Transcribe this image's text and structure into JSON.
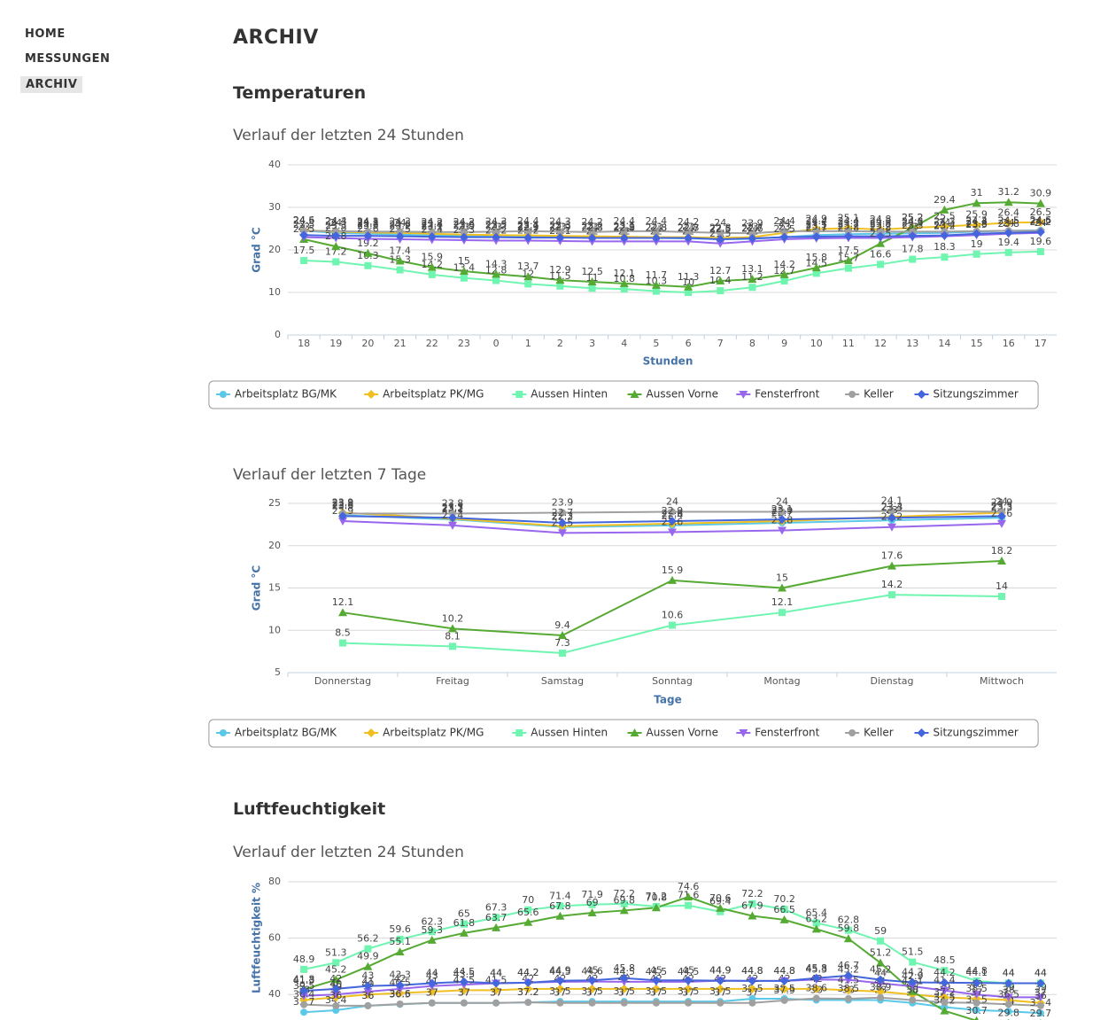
{
  "nav": [
    "HOME",
    "MESSUNGEN",
    "ARCHIV"
  ],
  "title": "ARCHIV",
  "sections": [
    "Temperaturen",
    "Luftfeuchtigkeit"
  ],
  "subtitles": [
    "Verlauf der letzten 24 Stunden",
    "Verlauf der letzten 7 Tage",
    "Verlauf der letzten 24 Stunden"
  ],
  "chart_data": [
    {
      "type": "line",
      "y_label": "Grad °C",
      "x_label": "Stunden",
      "categories": [
        "18",
        "19",
        "20",
        "21",
        "22",
        "23",
        "0",
        "1",
        "2",
        "3",
        "4",
        "5",
        "6",
        "7",
        "8",
        "9",
        "10",
        "11",
        "12",
        "13",
        "14",
        "15",
        "16",
        "17"
      ],
      "ylim": [
        0,
        40
      ],
      "yticks": [
        0,
        10,
        20,
        30,
        40
      ],
      "grid": true,
      "legend": "bottom",
      "series": [
        {
          "name": "Arbeitsplatz BG/MK",
          "color": "#5bc8e8",
          "marker": "circle",
          "values": [
            24.5,
            24,
            23.8,
            23.6,
            23.4,
            23.3,
            23.2,
            23.1,
            23,
            23,
            22.9,
            22.8,
            22.7,
            22.5,
            22.6,
            23,
            23.5,
            23.7,
            23.8,
            23.9,
            24,
            24.3,
            24.5,
            24.6
          ]
        },
        {
          "name": "Arbeitsplatz PK/MG",
          "color": "#f0c020",
          "marker": "diamond",
          "values": [
            24.6,
            24.3,
            24.1,
            24,
            23.8,
            23.6,
            23.5,
            23.4,
            23.3,
            23.2,
            23.1,
            23,
            23,
            22.8,
            23,
            24,
            24.9,
            25.1,
            24.8,
            25.2,
            25.5,
            25.9,
            26.4,
            26.5
          ]
        },
        {
          "name": "Aussen Hinten",
          "color": "#6ff5b0",
          "marker": "square",
          "values": [
            17.5,
            17.2,
            16.3,
            15.3,
            14.2,
            13.4,
            12.8,
            12,
            11.5,
            11,
            10.8,
            10.3,
            10,
            10.4,
            11.2,
            12.7,
            14.5,
            15.7,
            16.6,
            17.8,
            18.3,
            19,
            19.4,
            19.6
          ]
        },
        {
          "name": "Aussen Vorne",
          "color": "#55aa33",
          "marker": "triangle",
          "values": [
            22.5,
            20.8,
            19.2,
            17.4,
            15.9,
            15,
            14.3,
            13.7,
            12.9,
            12.5,
            12.1,
            11.7,
            11.3,
            12.7,
            13.1,
            14.2,
            15.8,
            17.5,
            21.5,
            25.2,
            29.4,
            31,
            31.2,
            30.9
          ]
        },
        {
          "name": "Fensterfront",
          "color": "#9966ee",
          "marker": "triangle-down",
          "values": [
            23,
            22.8,
            22.6,
            22.5,
            22.4,
            22.3,
            22.2,
            22.2,
            22.1,
            22,
            22,
            22,
            22,
            21.5,
            22,
            22.5,
            22.7,
            22.8,
            22.8,
            23,
            23.2,
            23.5,
            23.8,
            24
          ]
        },
        {
          "name": "Keller",
          "color": "#a0a0a0",
          "marker": "circle",
          "values": [
            24.5,
            24.4,
            24.3,
            24.3,
            24.2,
            24.2,
            24.3,
            24.4,
            24.3,
            24.2,
            24.4,
            24.4,
            24.2,
            24,
            23.9,
            24.4,
            24.4,
            24.4,
            24.3,
            24.3,
            24.3,
            24.4,
            24.5,
            24.5
          ]
        },
        {
          "name": "Sitzungszimmer",
          "color": "#4466dd",
          "marker": "diamond",
          "values": [
            23.5,
            23.3,
            23.3,
            23.2,
            23.1,
            23,
            23,
            22.9,
            22.9,
            22.8,
            22.8,
            22.8,
            22.8,
            22.5,
            22.7,
            23,
            23.1,
            23.2,
            23.2,
            23.3,
            23.4,
            23.8,
            24,
            24.2
          ]
        }
      ]
    },
    {
      "type": "line",
      "y_label": "Grad °C",
      "x_label": "Tage",
      "categories": [
        "Donnerstag",
        "Freitag",
        "Samstag",
        "Sonntag",
        "Montag",
        "Dienstag",
        "Mittwoch"
      ],
      "ylim": [
        5,
        25
      ],
      "yticks": [
        5,
        10,
        15,
        20,
        25
      ],
      "grid": true,
      "legend": "bottom",
      "series": [
        {
          "name": "Arbeitsplatz BG/MK",
          "color": "#5bc8e8",
          "marker": "circle",
          "values": [
            23.6,
            23.1,
            22.2,
            22.4,
            22.7,
            23,
            23.3
          ]
        },
        {
          "name": "Arbeitsplatz PK/MG",
          "color": "#f0c020",
          "marker": "diamond",
          "values": [
            23.9,
            23.2,
            22.3,
            22.6,
            22.9,
            23.4,
            23.9
          ]
        },
        {
          "name": "Aussen Hinten",
          "color": "#6ff5b0",
          "marker": "square",
          "values": [
            8.5,
            8.1,
            7.3,
            10.6,
            12.1,
            14.2,
            14
          ]
        },
        {
          "name": "Aussen Vorne",
          "color": "#55aa33",
          "marker": "triangle",
          "values": [
            12.1,
            10.2,
            9.4,
            15.9,
            15,
            17.6,
            18.2
          ]
        },
        {
          "name": "Fensterfront",
          "color": "#9966ee",
          "marker": "triangle-down",
          "values": [
            22.9,
            22.4,
            21.5,
            21.6,
            21.8,
            22.2,
            22.6
          ]
        },
        {
          "name": "Keller",
          "color": "#a0a0a0",
          "marker": "circle",
          "values": [
            23.8,
            23.8,
            23.9,
            24,
            24,
            24.1,
            24
          ]
        },
        {
          "name": "Sitzungszimmer",
          "color": "#4466dd",
          "marker": "diamond",
          "values": [
            23.5,
            23.3,
            22.7,
            22.9,
            23.1,
            23.3,
            23.5
          ]
        }
      ]
    },
    {
      "type": "line",
      "y_label": "Luftfeuchtigkeit %",
      "ylim": [
        30,
        80
      ],
      "yticks": [
        40,
        60,
        80
      ],
      "grid": true,
      "series": [
        {
          "color": "#5bc8e8",
          "marker": "circle",
          "values": [
            33.7,
            34.4,
            36,
            36.5,
            37,
            37,
            37,
            37.2,
            37.5,
            37.5,
            37.5,
            37.5,
            37.5,
            37.5,
            38.5,
            38.5,
            38,
            38,
            38,
            37,
            35.5,
            34.5,
            34,
            33.4
          ]
        },
        {
          "color": "#f0c020",
          "marker": "diamond",
          "values": [
            38,
            39,
            40,
            40.5,
            41,
            41.5,
            41.5,
            42,
            42,
            42,
            42,
            42,
            42,
            42,
            42,
            42,
            42,
            41.5,
            41,
            40,
            39,
            38.5,
            38,
            37
          ]
        },
        {
          "color": "#6ff5b0",
          "marker": "square",
          "values": [
            48.9,
            51.3,
            56.2,
            59.6,
            62.3,
            65,
            67.3,
            70,
            71.4,
            71.9,
            72.2,
            71.2,
            71.6,
            69.4,
            72.2,
            70.2,
            65.4,
            62.8,
            59,
            51.5,
            48.5,
            44.8,
            44,
            44
          ]
        },
        {
          "color": "#55aa33",
          "marker": "triangle",
          "values": [
            41.8,
            45.2,
            49.9,
            55.1,
            59.3,
            61.8,
            63.7,
            65.6,
            67.8,
            69,
            69.8,
            70.8,
            74.6,
            70.6,
            67.9,
            66.5,
            63.2,
            59.8,
            51.2,
            41.1,
            34.2,
            30.7,
            29.8,
            29.7
          ]
        },
        {
          "color": "#9966ee",
          "marker": "triangle-down",
          "values": [
            39.5,
            40,
            41,
            42,
            43,
            43.5,
            44,
            44.2,
            44.5,
            44.6,
            44.5,
            44.5,
            44.5,
            44.9,
            44.8,
            44.8,
            45.3,
            45.2,
            44,
            42.9,
            41.4,
            40,
            39,
            39
          ]
        },
        {
          "color": "#a0a0a0",
          "marker": "circle",
          "values": [
            36.4,
            36,
            36,
            36.6,
            37,
            37,
            37,
            37.2,
            37,
            37,
            37,
            37,
            37,
            37,
            37,
            37.9,
            38.6,
            38.5,
            38.9,
            38,
            37.2,
            37,
            36.5,
            36
          ]
        },
        {
          "color": "#4466dd",
          "marker": "diamond",
          "values": [
            41.3,
            42,
            43,
            43.3,
            44,
            44.5,
            44,
            44.2,
            44.9,
            45,
            45.8,
            45,
            45,
            44.9,
            44.8,
            44.8,
            45.8,
            46.7,
            45.2,
            44.3,
            44.2,
            44.1,
            44,
            44
          ]
        }
      ]
    }
  ]
}
